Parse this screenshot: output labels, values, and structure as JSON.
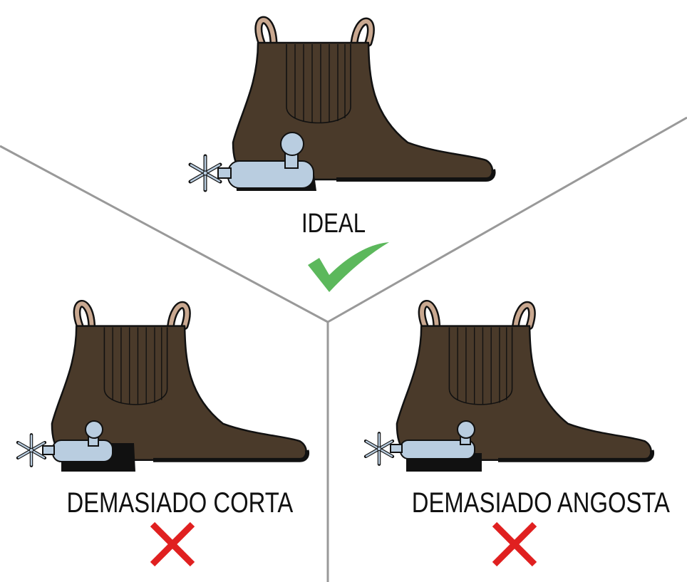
{
  "panels": [
    {
      "id": "ideal",
      "label": "IDEAL",
      "verdict": "check-icon"
    },
    {
      "id": "short",
      "label": "DEMASIADO CORTA",
      "verdict": "cross-icon"
    },
    {
      "id": "narrow",
      "label": "DEMASIADO ANGOSTA",
      "verdict": "cross-icon"
    }
  ],
  "colors": {
    "boot": "#4a3a2a",
    "boot_outline": "#111111",
    "pull_tab": "#c9a890",
    "spur": "#b9cde0",
    "heel_sole": "#111111",
    "divider": "#999999",
    "check": "#5cb85c",
    "cross": "#e02020"
  }
}
